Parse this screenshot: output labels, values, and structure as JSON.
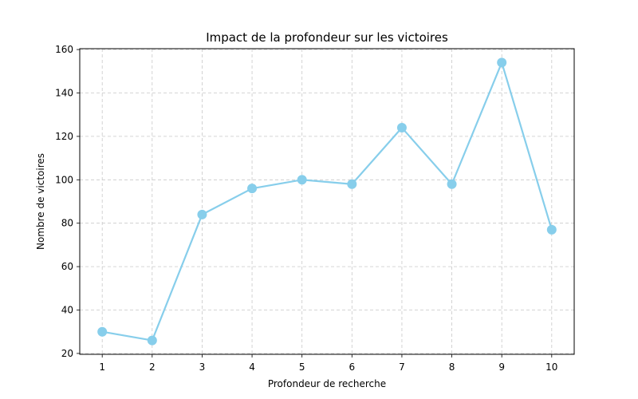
{
  "chart_data": {
    "type": "line",
    "title": "Impact de la profondeur sur les victoires",
    "xlabel": "Profondeur de recherche",
    "ylabel": "Nombre de victoires",
    "x": [
      1,
      2,
      3,
      4,
      5,
      6,
      7,
      8,
      9,
      10
    ],
    "series": [
      {
        "values": [
          30,
          26,
          84,
          96,
          100,
          98,
          124,
          98,
          154,
          77
        ],
        "color": "#87ceeb",
        "marker": "circle"
      }
    ],
    "xlim": [
      0.55,
      10.45
    ],
    "ylim": [
      19.6,
      160.4
    ],
    "xticks": [
      1,
      2,
      3,
      4,
      5,
      6,
      7,
      8,
      9,
      10
    ],
    "yticks": [
      20,
      40,
      60,
      80,
      100,
      120,
      140,
      160
    ],
    "grid": true
  }
}
